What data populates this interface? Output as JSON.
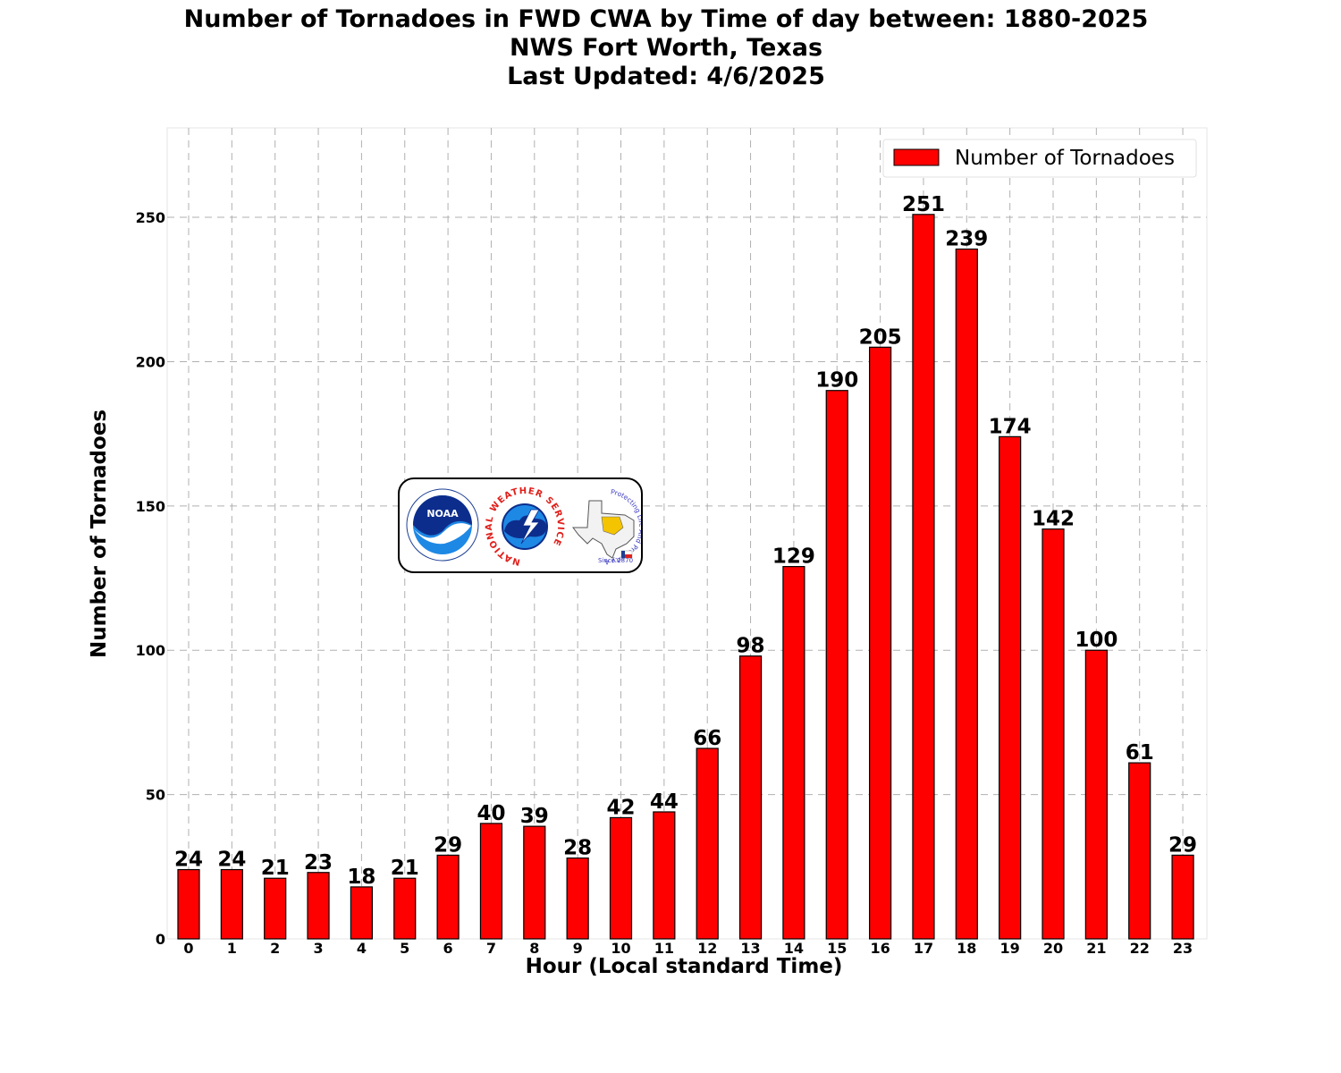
{
  "title": {
    "line1": "Number of Tornadoes in FWD CWA by Time of day between: 1880-2025",
    "line2": "NWS Fort Worth, Texas",
    "line3": "Last Updated: 4/6/2025"
  },
  "logos": {
    "noaa": "NOAA",
    "nws_ring": "NATIONAL WEATHER SERVICE",
    "fwd_ring": "Protecting Life And Property Across North Texas",
    "fwd_since": "Since 1870"
  },
  "colors": {
    "bar": "#ff0000",
    "bar_edge": "#000000",
    "grid": "#b0b0b0"
  },
  "chart_data": {
    "type": "bar",
    "xlabel": "Hour (Local standard Time)",
    "ylabel": "Number of Tornadoes",
    "categories": [
      "0",
      "1",
      "2",
      "3",
      "4",
      "5",
      "6",
      "7",
      "8",
      "9",
      "10",
      "11",
      "12",
      "13",
      "14",
      "15",
      "16",
      "17",
      "18",
      "19",
      "20",
      "21",
      "22",
      "23"
    ],
    "series": [
      {
        "name": "Number of Tornadoes",
        "values": [
          24,
          24,
          21,
          23,
          18,
          21,
          29,
          40,
          39,
          28,
          42,
          44,
          66,
          98,
          129,
          190,
          205,
          251,
          239,
          174,
          142,
          100,
          61,
          29
        ]
      }
    ],
    "ylim": [
      0,
      281
    ],
    "yticks": [
      0,
      50,
      100,
      150,
      200,
      250
    ],
    "grid": true,
    "legend": "top-right",
    "data_labels": true
  }
}
